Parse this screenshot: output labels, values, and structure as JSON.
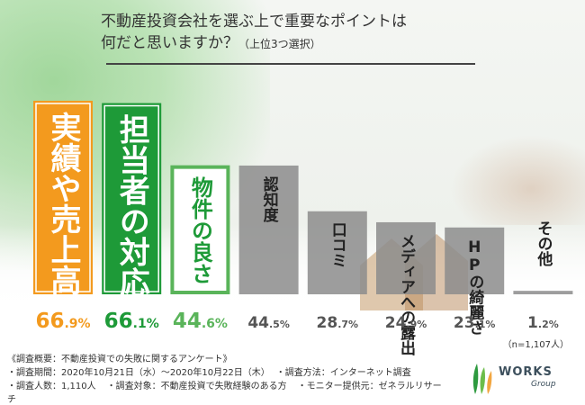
{
  "title_line1": "不動産投資会社を選ぶ上で重要なポイントは",
  "title_line2": "何だと思いますか？",
  "title_note": "（上位3つ選択）",
  "n_note": "（n=1,107人）",
  "chart_data": {
    "type": "bar",
    "categories": [
      "実績や売上高",
      "担当者の対応",
      "物件の良さ",
      "認知度",
      "口コミ",
      "メディアへの露出",
      "HPの綺麗さ",
      "その他"
    ],
    "values": [
      66.9,
      66.1,
      44.6,
      44.5,
      28.7,
      24.9,
      23.1,
      1.2
    ],
    "unit": "%",
    "colors": [
      "#f39a1e",
      "#1e9a38",
      "#5ab45a",
      "#8c8c8c",
      "#8c8c8c",
      "#8c8c8c",
      "#8c8c8c",
      "#8c8c8c"
    ],
    "value_colors": [
      "#f39a1e",
      "#1e9a38",
      "#5ab45a",
      "#555555",
      "#555555",
      "#555555",
      "#555555",
      "#555555"
    ],
    "ylim": [
      0,
      70
    ]
  },
  "footer": {
    "line1": "《調査概要：不動産投資での失敗に関するアンケート》",
    "period": "・調査期間：2020年10月21日（水）〜2020年10月22日（木）",
    "method": "・調査方法：インターネット調査",
    "count": "・調査人数：1,110人",
    "target": "・調査対象：不動産投資で失敗経験のある方",
    "provider": "・モニター提供元：ゼネラルリサーチ"
  },
  "logo": {
    "name": "WORKS",
    "sub": "Group"
  }
}
